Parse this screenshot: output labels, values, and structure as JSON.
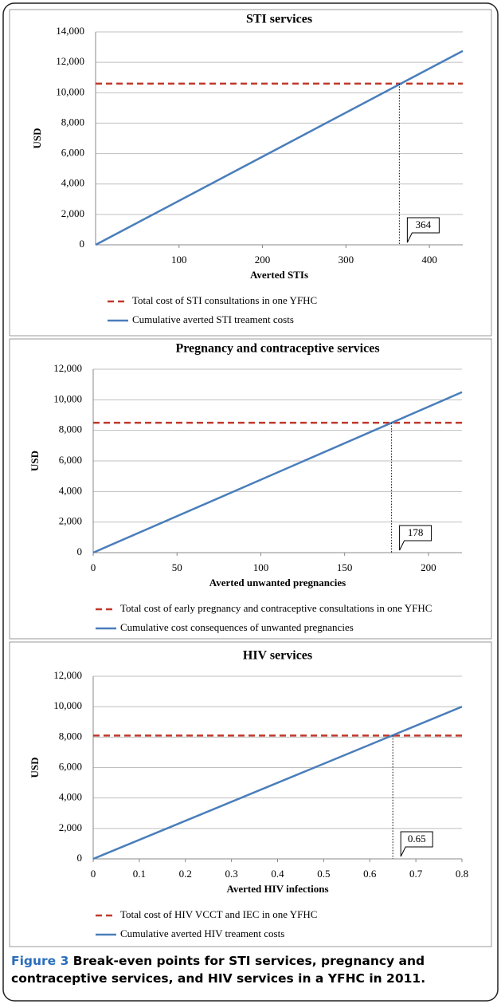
{
  "chart_data": [
    {
      "type": "line",
      "title": "STI services",
      "x_label": "Averted STIs",
      "y_label": "USD",
      "x": [
        0,
        440
      ],
      "series": [
        {
          "name": "Total cost of STI consultations in one YFHC",
          "color": "#c0392b",
          "style": "dashed",
          "values": [
            10600,
            10600
          ]
        },
        {
          "name": "Cumulative averted STI treament costs",
          "color": "#4a7ebb",
          "style": "solid",
          "values": [
            0,
            12750
          ]
        }
      ],
      "xlim": [
        0,
        440
      ],
      "xticks": [
        100,
        200,
        300,
        400
      ],
      "ylim": [
        0,
        14000
      ],
      "yticks": [
        0,
        {
          "value": 2000,
          "label": "2,000"
        },
        {
          "value": 4000,
          "label": "4,000"
        },
        {
          "value": 6000,
          "label": "6,000"
        },
        {
          "value": 8000,
          "label": "8,000"
        },
        {
          "value": 10000,
          "label": "10,000"
        },
        {
          "value": 12000,
          "label": "12,000"
        },
        {
          "value": 14000,
          "label": "14,000"
        }
      ],
      "grid": true,
      "break_even": 364
    },
    {
      "type": "line",
      "title": "Pregnancy and contraceptive services",
      "x_label": "Averted unwanted pregnancies",
      "y_label": "USD",
      "x": [
        0,
        220
      ],
      "series": [
        {
          "name": "Total cost of early pregnancy and contraceptive consultations in one YFHC",
          "color": "#c0392b",
          "style": "dashed",
          "values": [
            8500,
            8500
          ]
        },
        {
          "name": "Cumulative cost consequences of unwanted pregnancies",
          "color": "#4a7ebb",
          "style": "solid",
          "values": [
            0,
            10500
          ]
        }
      ],
      "xlim": [
        0,
        220
      ],
      "xticks": [
        0,
        50,
        100,
        150,
        200
      ],
      "ylim": [
        0,
        12000
      ],
      "yticks": [
        0,
        {
          "value": 2000,
          "label": "2,000"
        },
        {
          "value": 4000,
          "label": "4,000"
        },
        {
          "value": 6000,
          "label": "6,000"
        },
        {
          "value": 8000,
          "label": "8,000"
        },
        {
          "value": 10000,
          "label": "10,000"
        },
        {
          "value": 12000,
          "label": "12,000"
        }
      ],
      "grid": true,
      "break_even": 178
    },
    {
      "type": "line",
      "title": "HIV services",
      "x_label": "Averted HIV infections",
      "y_label": "USD",
      "x": [
        0,
        0.8
      ],
      "series": [
        {
          "name": "Total cost of HIV VCCT and IEC in one YFHC",
          "color": "#c0392b",
          "style": "dashed",
          "values": [
            8100,
            8100
          ]
        },
        {
          "name": "Cumulative averted HIV treament costs",
          "color": "#4a7ebb",
          "style": "solid",
          "values": [
            0,
            10000
          ]
        }
      ],
      "xlim": [
        0,
        0.8
      ],
      "xticks": [
        0,
        0.1,
        0.2,
        0.3,
        0.4,
        0.5,
        0.6,
        0.7,
        0.8
      ],
      "ylim": [
        0,
        12000
      ],
      "yticks": [
        0,
        {
          "value": 2000,
          "label": "2,000"
        },
        {
          "value": 4000,
          "label": "4,000"
        },
        {
          "value": 6000,
          "label": "6,000"
        },
        {
          "value": 8000,
          "label": "8,000"
        },
        {
          "value": 10000,
          "label": "10,000"
        },
        {
          "value": 12000,
          "label": "12,000"
        }
      ],
      "grid": true,
      "break_even": 0.65
    }
  ],
  "caption": {
    "label": "Figure 3",
    "text": "Break-even points for STI services, pregnancy and contraceptive services, and HIV services in a YFHC in 2011."
  }
}
